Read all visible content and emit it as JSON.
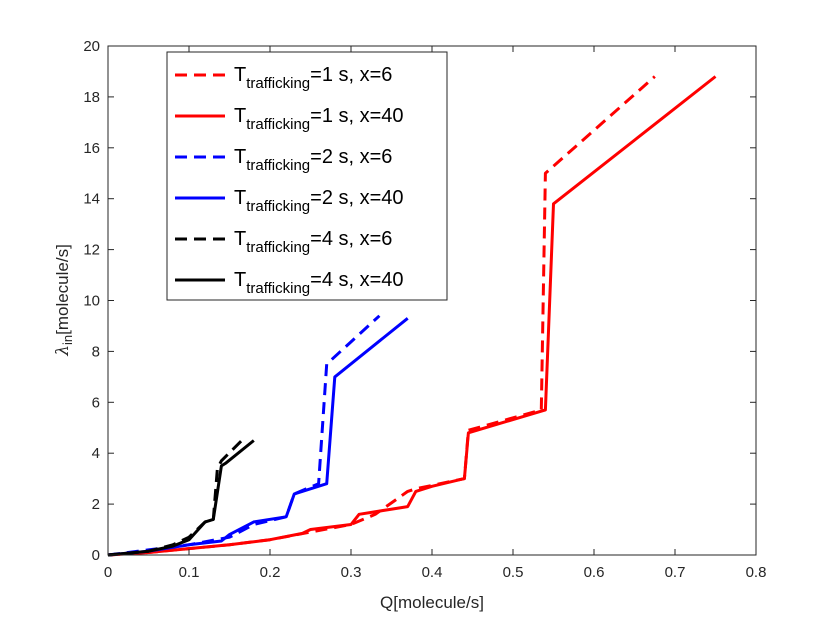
{
  "chart_data": {
    "type": "line",
    "title": "",
    "xlabel": "Q[molecule/s]",
    "ylabel": {
      "main": "λ",
      "sub": "in",
      "rest": "[molecule/s]"
    },
    "xlim": [
      0,
      0.8
    ],
    "ylim": [
      0,
      20
    ],
    "xticks": [
      "0",
      "0.1",
      "0.2",
      "0.3",
      "0.4",
      "0.5",
      "0.6",
      "0.7",
      "0.8"
    ],
    "yticks": [
      "0",
      "2",
      "4",
      "6",
      "8",
      "10",
      "12",
      "14",
      "16",
      "18",
      "20"
    ],
    "grid": false,
    "legend_position": "top-left",
    "series": [
      {
        "legend": {
          "main": "T",
          "sub": "trafficking",
          "rest": "=1 s, x=6"
        },
        "color": "#ff0000",
        "dash": "dashed",
        "x": [
          0,
          0.05,
          0.1,
          0.15,
          0.2,
          0.25,
          0.3,
          0.33,
          0.37,
          0.38,
          0.44,
          0.445,
          0.535,
          0.54,
          0.675
        ],
        "y": [
          0,
          0.1,
          0.25,
          0.4,
          0.6,
          0.9,
          1.2,
          1.6,
          2.5,
          2.6,
          3.0,
          4.9,
          5.7,
          15.0,
          18.8
        ]
      },
      {
        "legend": {
          "main": "T",
          "sub": "trafficking",
          "rest": "=1 s, x=40"
        },
        "color": "#ff0000",
        "dash": "solid",
        "x": [
          0,
          0.05,
          0.1,
          0.15,
          0.2,
          0.24,
          0.25,
          0.3,
          0.31,
          0.37,
          0.38,
          0.4,
          0.44,
          0.445,
          0.54,
          0.55,
          0.75
        ],
        "y": [
          0,
          0.1,
          0.25,
          0.4,
          0.6,
          0.85,
          1.0,
          1.2,
          1.6,
          1.9,
          2.5,
          2.7,
          3.0,
          4.8,
          5.7,
          13.8,
          18.8
        ]
      },
      {
        "legend": {
          "main": "T",
          "sub": "trafficking",
          "rest": "=2 s, x=6"
        },
        "color": "#0000ff",
        "dash": "dashed",
        "x": [
          0,
          0.05,
          0.1,
          0.15,
          0.18,
          0.22,
          0.23,
          0.26,
          0.27,
          0.335
        ],
        "y": [
          0,
          0.2,
          0.4,
          0.7,
          1.2,
          1.5,
          2.4,
          2.8,
          7.5,
          9.4
        ]
      },
      {
        "legend": {
          "main": "T",
          "sub": "trafficking",
          "rest": "=2 s, x=40"
        },
        "color": "#0000ff",
        "dash": "solid",
        "x": [
          0,
          0.05,
          0.1,
          0.14,
          0.15,
          0.18,
          0.22,
          0.23,
          0.27,
          0.28,
          0.37
        ],
        "y": [
          0,
          0.15,
          0.4,
          0.55,
          0.8,
          1.3,
          1.5,
          2.4,
          2.8,
          7.0,
          9.3
        ]
      },
      {
        "legend": {
          "main": "T",
          "sub": "trafficking",
          "rest": "=4 s, x=6"
        },
        "color": "#000000",
        "dash": "dashed",
        "x": [
          0,
          0.05,
          0.08,
          0.1,
          0.12,
          0.13,
          0.135,
          0.14,
          0.165
        ],
        "y": [
          0,
          0.15,
          0.4,
          0.7,
          1.3,
          1.4,
          3.4,
          3.7,
          4.5
        ]
      },
      {
        "legend": {
          "main": "T",
          "sub": "trafficking",
          "rest": "=4 s, x=40"
        },
        "color": "#000000",
        "dash": "solid",
        "x": [
          0,
          0.05,
          0.08,
          0.1,
          0.12,
          0.13,
          0.14,
          0.145,
          0.18
        ],
        "y": [
          0,
          0.15,
          0.35,
          0.6,
          1.3,
          1.4,
          3.5,
          3.6,
          4.5
        ]
      }
    ]
  }
}
